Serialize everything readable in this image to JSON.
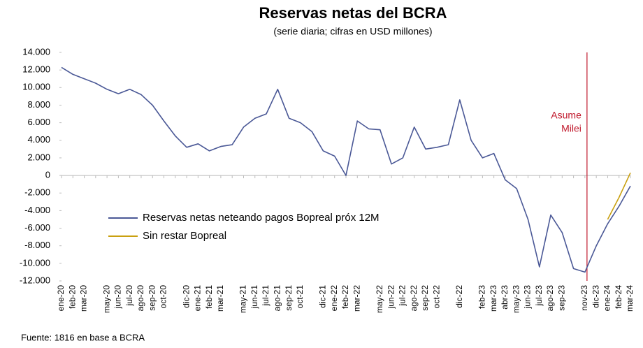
{
  "chart_data": {
    "type": "line",
    "title": "Reservas netas del BCRA",
    "subtitle": "(serie diaria; cifras en USD millones)",
    "source": "Fuente: 1816 en base a BCRA",
    "categories": [
      "ene-20",
      "feb-20",
      "mar-20",
      null,
      "may-20",
      "jun-20",
      "jul-20",
      "ago-20",
      "sep-20",
      "oct-20",
      null,
      "dic-20",
      "ene-21",
      "feb-21",
      "mar-21",
      null,
      "may-21",
      "jun-21",
      "jul-21",
      "ago-21",
      "sep-21",
      "oct-21",
      null,
      "dic-21",
      "ene-22",
      "feb-22",
      "mar-22",
      null,
      "may-22",
      "jun-22",
      "jul-22",
      "ago-22",
      "sep-22",
      "oct-22",
      null,
      "dic-22",
      null,
      "feb-23",
      "mar-23",
      "abr-23",
      "may-23",
      "jun-23",
      "jul-23",
      "ago-23",
      "sep-23",
      null,
      "nov-23",
      "dic-23",
      "ene-24",
      "feb-24",
      "mar-24"
    ],
    "series": [
      {
        "name": "Reservas netas neteando pagos Bopreal próx 12M",
        "color": "#4a5896",
        "values": [
          12300,
          11500,
          11000,
          10500,
          9800,
          9300,
          9800,
          9200,
          8000,
          6200,
          4500,
          3200,
          3600,
          2800,
          3300,
          3500,
          5500,
          6500,
          7000,
          9800,
          6500,
          6000,
          5000,
          2800,
          2200,
          0,
          6200,
          5300,
          5200,
          1300,
          2000,
          5500,
          3000,
          3200,
          3500,
          8600,
          4000,
          2000,
          2500,
          -500,
          -1500,
          -5000,
          -10400,
          -4500,
          -6500,
          -10600,
          -11000,
          -8000,
          -5500,
          -3500,
          -1200
        ]
      },
      {
        "name": "Sin restar Bopreal",
        "color": "#c9a010",
        "values": [
          null,
          null,
          null,
          null,
          null,
          null,
          null,
          null,
          null,
          null,
          null,
          null,
          null,
          null,
          null,
          null,
          null,
          null,
          null,
          null,
          null,
          null,
          null,
          null,
          null,
          null,
          null,
          null,
          null,
          null,
          null,
          null,
          null,
          null,
          null,
          null,
          null,
          null,
          null,
          null,
          null,
          null,
          null,
          null,
          null,
          null,
          null,
          null,
          -5000,
          -2500,
          300
        ]
      }
    ],
    "ylim": [
      -12000,
      14000
    ],
    "yticks": [
      {
        "value": 14000,
        "label": "14.000"
      },
      {
        "value": 12000,
        "label": "12.000"
      },
      {
        "value": 10000,
        "label": "10.000"
      },
      {
        "value": 8000,
        "label": "8.000"
      },
      {
        "value": 6000,
        "label": "6.000"
      },
      {
        "value": 4000,
        "label": "4.000"
      },
      {
        "value": 2000,
        "label": "2.000"
      },
      0,
      {
        "value": -2000,
        "label": "-2.000"
      },
      {
        "value": -4000,
        "label": "-4.000"
      },
      {
        "value": -6000,
        "label": "-6.000"
      },
      {
        "value": -8000,
        "label": "-8.000"
      },
      {
        "value": -10000,
        "label": "-10.000"
      },
      {
        "value": -12000,
        "label": "-12.000"
      }
    ],
    "annotation": {
      "lines": [
        "Asume",
        "Milei"
      ],
      "at": "nov-23",
      "color": "#c0182b"
    },
    "legend": "lower left",
    "grid": false
  }
}
